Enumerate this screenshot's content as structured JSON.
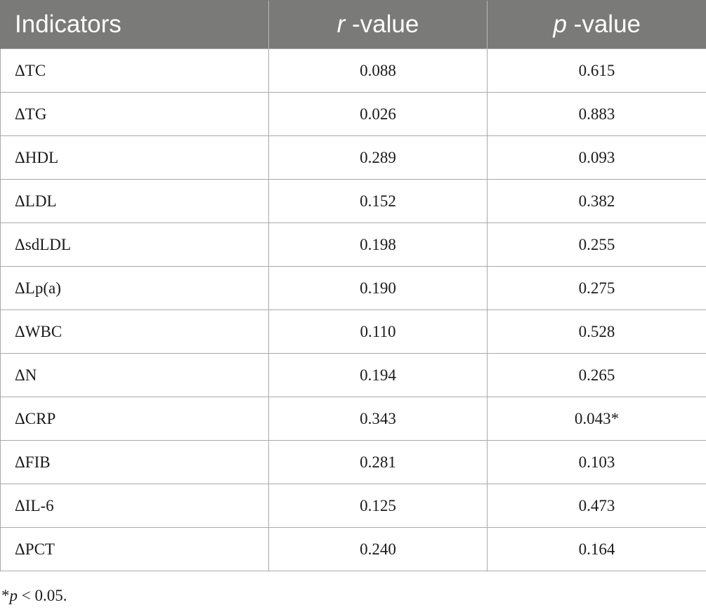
{
  "table": {
    "headers": {
      "indicator": "Indicators",
      "r_var": "r",
      "r_suffix": " -value",
      "p_var": "p",
      "p_suffix": " -value"
    },
    "rows": [
      {
        "indicator": "ΔTC",
        "r": "0.088",
        "p": "0.615"
      },
      {
        "indicator": "ΔTG",
        "r": "0.026",
        "p": "0.883"
      },
      {
        "indicator": "ΔHDL",
        "r": "0.289",
        "p": "0.093"
      },
      {
        "indicator": "ΔLDL",
        "r": "0.152",
        "p": "0.382"
      },
      {
        "indicator": "ΔsdLDL",
        "r": "0.198",
        "p": "0.255"
      },
      {
        "indicator": "ΔLp(a)",
        "r": "0.190",
        "p": "0.275"
      },
      {
        "indicator": "ΔWBC",
        "r": "0.110",
        "p": "0.528"
      },
      {
        "indicator": "ΔN",
        "r": "0.194",
        "p": "0.265"
      },
      {
        "indicator": "ΔCRP",
        "r": "0.343",
        "p": "0.043*"
      },
      {
        "indicator": "ΔFIB",
        "r": "0.281",
        "p": "0.103"
      },
      {
        "indicator": "ΔIL-6",
        "r": "0.125",
        "p": "0.473"
      },
      {
        "indicator": "ΔPCT",
        "r": "0.240",
        "p": "0.164"
      }
    ]
  },
  "footnote": {
    "star": "*",
    "var": "p",
    "text": " < 0.05."
  },
  "colors": {
    "header_bg": "#7a7a78",
    "header_text": "#ffffff",
    "grid": "#a9a9a9"
  }
}
